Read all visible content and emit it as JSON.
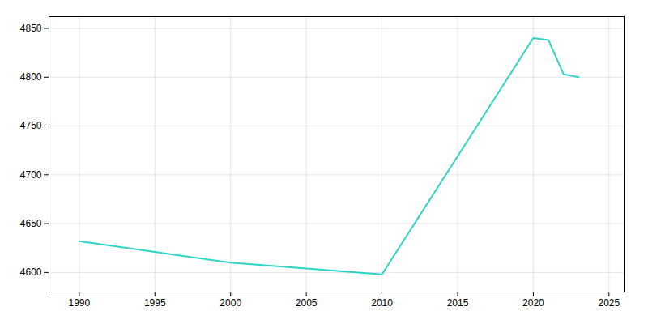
{
  "chart_data": {
    "type": "line",
    "x": [
      1990,
      2000,
      2010,
      2020,
      2021,
      2022,
      2023
    ],
    "values": [
      4632,
      4610,
      4598,
      4840,
      4838,
      4803,
      4800
    ],
    "color": "#2dd4c7",
    "xlim": [
      1988,
      2026
    ],
    "ylim": [
      4580,
      4862
    ],
    "xticks": [
      1990,
      1995,
      2000,
      2005,
      2010,
      2015,
      2020,
      2025
    ],
    "yticks": [
      4600,
      4650,
      4700,
      4750,
      4800,
      4850
    ],
    "grid": true
  }
}
